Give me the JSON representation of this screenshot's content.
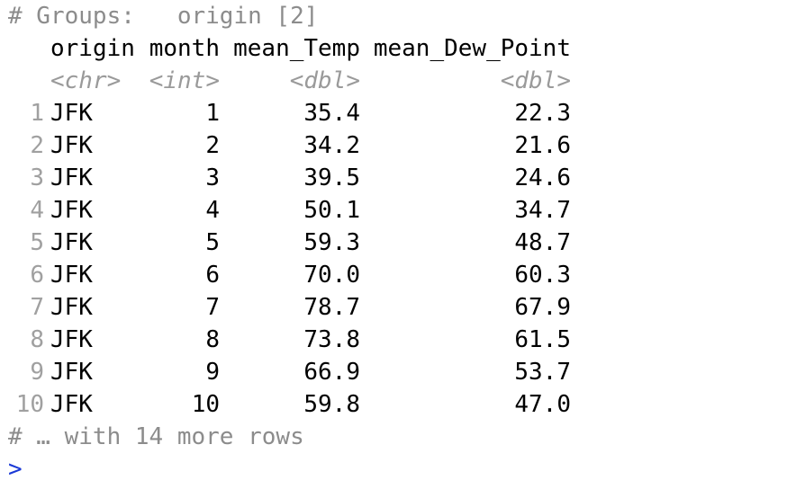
{
  "groups_line": "# Groups:   origin [2]",
  "columns": [
    {
      "name": "origin",
      "type": "<chr>"
    },
    {
      "name": "month",
      "type": "<int>"
    },
    {
      "name": "mean_Temp",
      "type": "<dbl>"
    },
    {
      "name": "mean_Dew_Point",
      "type": "<dbl>"
    }
  ],
  "rows": [
    {
      "n": "1",
      "origin": "JFK",
      "month": "1",
      "mean_Temp": "35.4",
      "mean_Dew_Point": "22.3"
    },
    {
      "n": "2",
      "origin": "JFK",
      "month": "2",
      "mean_Temp": "34.2",
      "mean_Dew_Point": "21.6"
    },
    {
      "n": "3",
      "origin": "JFK",
      "month": "3",
      "mean_Temp": "39.5",
      "mean_Dew_Point": "24.6"
    },
    {
      "n": "4",
      "origin": "JFK",
      "month": "4",
      "mean_Temp": "50.1",
      "mean_Dew_Point": "34.7"
    },
    {
      "n": "5",
      "origin": "JFK",
      "month": "5",
      "mean_Temp": "59.3",
      "mean_Dew_Point": "48.7"
    },
    {
      "n": "6",
      "origin": "JFK",
      "month": "6",
      "mean_Temp": "70.0",
      "mean_Dew_Point": "60.3"
    },
    {
      "n": "7",
      "origin": "JFK",
      "month": "7",
      "mean_Temp": "78.7",
      "mean_Dew_Point": "67.9"
    },
    {
      "n": "8",
      "origin": "JFK",
      "month": "8",
      "mean_Temp": "73.8",
      "mean_Dew_Point": "61.5"
    },
    {
      "n": "9",
      "origin": "JFK",
      "month": "9",
      "mean_Temp": "66.9",
      "mean_Dew_Point": "53.7"
    },
    {
      "n": "10",
      "origin": "JFK",
      "month": "10",
      "mean_Temp": "59.8",
      "mean_Dew_Point": "47.0"
    }
  ],
  "footer_line": "# … with 14 more rows",
  "prompt_symbol": ">",
  "colors": {
    "comment": "#8c8c8c",
    "type_hint": "#9a9a9a",
    "row_number": "#a0a0a0",
    "prompt": "#1a39d6",
    "text": "#000000",
    "background": "#ffffff"
  }
}
